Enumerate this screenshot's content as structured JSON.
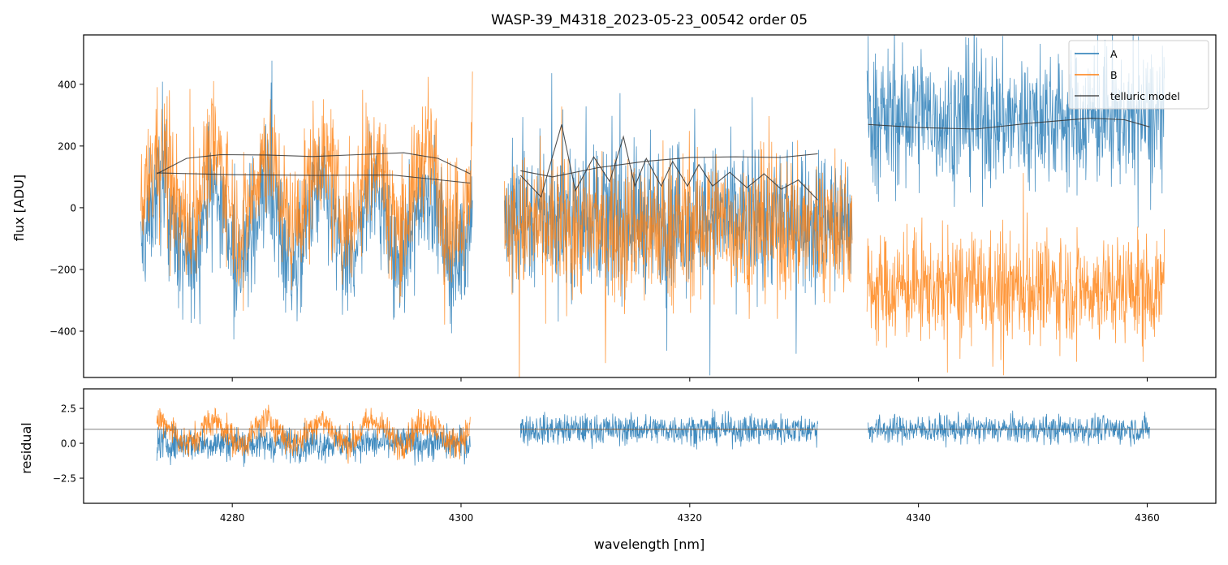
{
  "chart_data": [
    {
      "type": "line",
      "title": "WASP-39_M4318_2023-05-23_00542  order 05",
      "xlabel": "",
      "ylabel": "flux [ADU]",
      "xlim": [
        4267,
        4366
      ],
      "ylim": [
        -550,
        560
      ],
      "yticks": [
        400,
        200,
        0,
        -200,
        -400
      ],
      "ytick_labels": [
        "400",
        "200",
        "0",
        "−200",
        "−400"
      ],
      "legend": {
        "position": "top-right",
        "entries": [
          {
            "label": "A",
            "color": "#1f77b4"
          },
          {
            "label": "B",
            "color": "#ff7f0e"
          },
          {
            "label": "telluric model",
            "color": "#333333"
          }
        ]
      },
      "series": [
        {
          "name": "A",
          "color": "#1f77b4",
          "segments": [
            {
              "x_range": [
                4272,
                4301
              ],
              "median": -60,
              "noise": 200,
              "gap_note": "first chunk"
            },
            {
              "x_range": [
                4303.8,
                4334.2
              ],
              "median": -30,
              "noise": 230
            },
            {
              "x_range": [
                4335.5,
                4361.5
              ],
              "median": 290,
              "noise": 220
            }
          ]
        },
        {
          "name": "B",
          "color": "#ff7f0e",
          "segments": [
            {
              "x_range": [
                4272,
                4301
              ],
              "median": 60,
              "noise": 200
            },
            {
              "x_range": [
                4303.8,
                4334.2
              ],
              "median": -60,
              "noise": 230
            },
            {
              "x_range": [
                4335.5,
                4361.5
              ],
              "median": -260,
              "noise": 170
            }
          ]
        },
        {
          "name": "telluric model (A)",
          "color": "#333333",
          "points": [
            [
              4273.4,
              110
            ],
            [
              4276,
              160
            ],
            [
              4279,
              172
            ],
            [
              4283,
              171
            ],
            [
              4287,
              166
            ],
            [
              4291,
              172
            ],
            [
              4295,
              178
            ],
            [
              4298,
              160
            ],
            [
              4300.8,
              110
            ],
            [
              4305.2,
              120
            ],
            [
              4308,
              100
            ],
            [
              4312,
              130
            ],
            [
              4316,
              150
            ],
            [
              4320,
              163
            ],
            [
              4324,
              165
            ],
            [
              4328,
              163
            ],
            [
              4331.2,
              175
            ],
            [
              4335.6,
              270
            ],
            [
              4340,
              260
            ],
            [
              4345,
              255
            ],
            [
              4350,
              275
            ],
            [
              4355,
              290
            ],
            [
              4358,
              285
            ],
            [
              4360.2,
              262
            ]
          ]
        },
        {
          "name": "telluric model (B)",
          "color": "#333333",
          "points": [
            [
              4273.4,
              113
            ],
            [
              4280,
              107
            ],
            [
              4287,
              105
            ],
            [
              4294,
              106
            ],
            [
              4300.8,
              80
            ],
            [
              4305.2,
              105
            ],
            [
              4307,
              35
            ],
            [
              4308.8,
              270
            ],
            [
              4310,
              55
            ],
            [
              4311.6,
              165
            ],
            [
              4313,
              85
            ],
            [
              4314.2,
              230
            ],
            [
              4315.2,
              70
            ],
            [
              4316.2,
              160
            ],
            [
              4317.5,
              70
            ],
            [
              4318.5,
              150
            ],
            [
              4319.8,
              70
            ],
            [
              4320.8,
              140
            ],
            [
              4322,
              70
            ],
            [
              4323.5,
              115
            ],
            [
              4325,
              65
            ],
            [
              4326.5,
              110
            ],
            [
              4328,
              60
            ],
            [
              4329.5,
              90
            ],
            [
              4331.2,
              25
            ]
          ]
        }
      ]
    },
    {
      "type": "line",
      "title": "",
      "xlabel": "wavelength [nm]",
      "ylabel": "residual",
      "xlim": [
        4267,
        4366
      ],
      "ylim": [
        -4.3,
        3.9
      ],
      "xticks": [
        4280,
        4300,
        4320,
        4340,
        4360
      ],
      "xtick_labels": [
        "4280",
        "4300",
        "4320",
        "4340",
        "4360"
      ],
      "yticks": [
        2.5,
        0.0,
        -2.5
      ],
      "ytick_labels": [
        "2.5",
        "0.0",
        "−2.5"
      ],
      "reference_line": 1.0,
      "series": [
        {
          "name": "A residual",
          "color": "#1f77b4",
          "segments": [
            {
              "x_range": [
                4273.4,
                4300.8
              ],
              "center": 0.0,
              "spread": 1.6
            },
            {
              "x_range": [
                4305.2,
                4331.2
              ],
              "center": 1.0,
              "spread": 1.4
            },
            {
              "x_range": [
                4335.6,
                4360.2
              ],
              "center": 1.0,
              "spread": 1.3
            }
          ]
        },
        {
          "name": "B residual",
          "color": "#ff7f0e",
          "segments": [
            {
              "x_range": [
                4273.4,
                4300.8
              ],
              "center": 0.8,
              "spread": 1.5
            },
            {
              "x_range": [
                4305.2,
                4331.2
              ],
              "center": 1.0,
              "spread": 0.03
            }
          ]
        }
      ]
    }
  ]
}
